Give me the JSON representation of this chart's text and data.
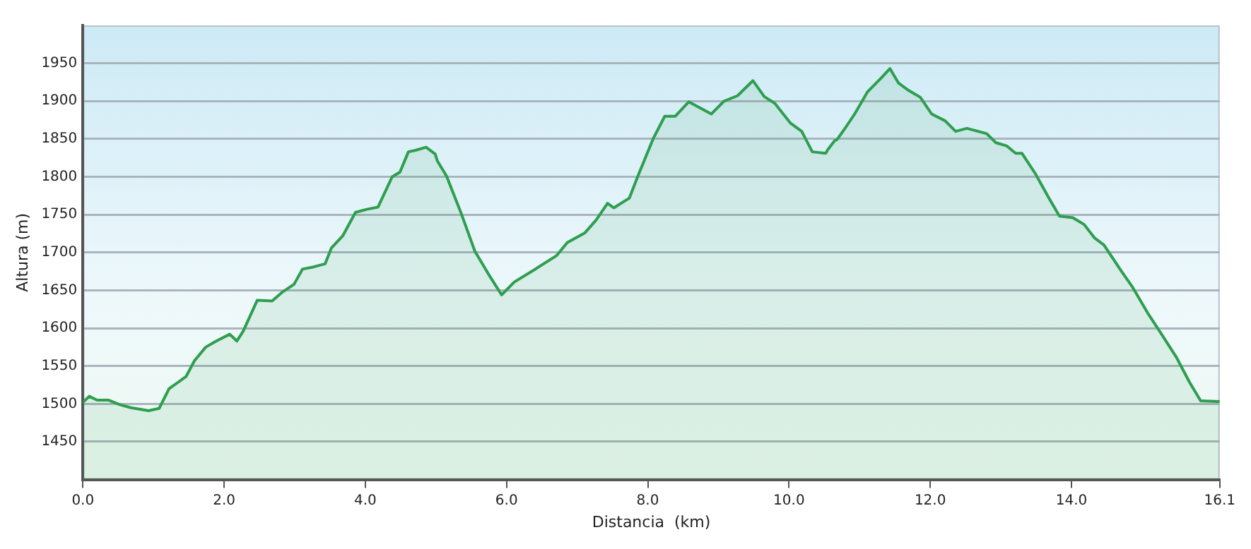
{
  "chart_data": {
    "type": "area",
    "xlabel": "Distancia  (km)",
    "ylabel": "Altura (m)",
    "x": [
      0,
      0.09,
      0.2,
      0.36,
      0.52,
      0.68,
      0.93,
      1.08,
      1.22,
      1.46,
      1.58,
      1.74,
      1.89,
      2.08,
      2.18,
      2.27,
      2.47,
      2.68,
      2.83,
      2.99,
      3.11,
      3.27,
      3.43,
      3.52,
      3.68,
      3.86,
      4.02,
      4.18,
      4.38,
      4.49,
      4.61,
      4.71,
      4.86,
      4.99,
      5.02,
      5.15,
      5.36,
      5.55,
      5.74,
      5.93,
      6.11,
      6.39,
      6.71,
      6.86,
      7.11,
      7.27,
      7.43,
      7.52,
      7.74,
      7.86,
      8.08,
      8.24,
      8.39,
      8.58,
      8.9,
      9.08,
      9.27,
      9.49,
      9.65,
      9.8,
      10.02,
      10.18,
      10.33,
      10.52,
      10.55,
      10.65,
      10.68,
      10.8,
      10.93,
      11.11,
      11.3,
      11.43,
      11.55,
      11.68,
      11.86,
      12.02,
      12.21,
      12.36,
      12.52,
      12.8,
      12.93,
      13.08,
      13.21,
      13.3,
      13.49,
      13.68,
      13.83,
      14.02,
      14.18,
      14.33,
      14.46,
      14.71,
      14.86,
      15.08,
      15.27,
      15.49,
      15.67,
      15.83,
      16.08,
      16.1
    ],
    "values": [
      1502,
      1510,
      1505,
      1505,
      1499,
      1495,
      1491,
      1494,
      1520,
      1536,
      1557,
      1575,
      1583,
      1592,
      1583,
      1596,
      1637,
      1636,
      1648,
      1658,
      1678,
      1681,
      1685,
      1706,
      1722,
      1753,
      1757,
      1760,
      1800,
      1806,
      1833,
      1835,
      1839,
      1830,
      1821,
      1801,
      1751,
      1702,
      1672,
      1644,
      1661,
      1677,
      1696,
      1713,
      1726,
      1743,
      1765,
      1759,
      1772,
      1801,
      1851,
      1880,
      1880,
      1899,
      1883,
      1900,
      1907,
      1927,
      1906,
      1897,
      1871,
      1860,
      1833,
      1831,
      1836,
      1848,
      1849,
      1865,
      1883,
      1912,
      1930,
      1943,
      1924,
      1915,
      1905,
      1883,
      1874,
      1860,
      1864,
      1857,
      1845,
      1841,
      1831,
      1831,
      1804,
      1772,
      1748,
      1746,
      1737,
      1719,
      1710,
      1675,
      1655,
      1620,
      1593,
      1561,
      1529,
      1504,
      1503,
      1503
    ],
    "color": "#2e9e4f",
    "xlim": [
      0,
      16.1
    ],
    "xticks": [
      {
        "value": 0,
        "label": "0.0"
      },
      {
        "value": 2,
        "label": "2.0"
      },
      {
        "value": 4,
        "label": "4.0"
      },
      {
        "value": 6,
        "label": "6.0"
      },
      {
        "value": 8,
        "label": "8.0"
      },
      {
        "value": 10,
        "label": "10.0"
      },
      {
        "value": 12,
        "label": "12.0"
      },
      {
        "value": 14,
        "label": "14.0"
      },
      {
        "value": 16.1,
        "label": "16.1"
      }
    ],
    "ylim": [
      1400,
      2000
    ],
    "yticks": [
      1450,
      1500,
      1550,
      1600,
      1650,
      1700,
      1750,
      1800,
      1850,
      1900,
      1950
    ],
    "grid": "y",
    "legend": false,
    "marker": "none",
    "line_style": "solid"
  }
}
